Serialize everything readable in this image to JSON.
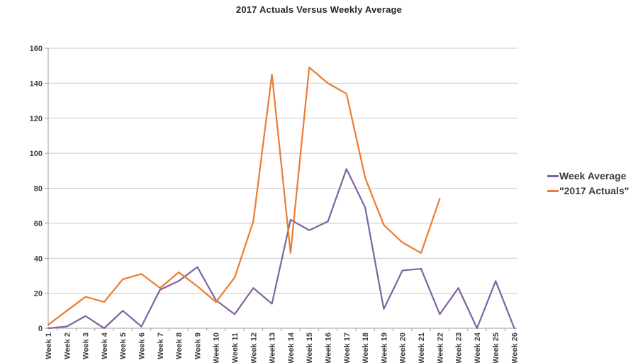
{
  "title": "2017 Actuals Versus Weekly Average",
  "legend": {
    "items": [
      {
        "label": "Week Average",
        "color": "#8064A2"
      },
      {
        "label": "\"2017 Actuals\"",
        "color": "#ED7D31"
      }
    ]
  },
  "chart_data": {
    "type": "line",
    "title": "2017 Actuals Versus Weekly Average",
    "categories": [
      "Week 1",
      "Week 2",
      "Week 3",
      "Week 4",
      "Week 5",
      "Week 6",
      "Week 7",
      "Week 8",
      "Week 9",
      "Week 10",
      "Week 11",
      "Week 12",
      "Week 13",
      "Week 14",
      "Week 15",
      "Week 16",
      "Week 17",
      "Week 18",
      "Week 19",
      "Week 20",
      "Week 21",
      "Week 22",
      "Week 23",
      "Week 24",
      "Week 25",
      "Week 26"
    ],
    "series": [
      {
        "name": "Week Average",
        "color": "#8064A2",
        "values": [
          0,
          1,
          7,
          0,
          10,
          1,
          22,
          27,
          35,
          16,
          8,
          23,
          14,
          62,
          56,
          61,
          91,
          69,
          11,
          33,
          34,
          8,
          23,
          0,
          27,
          0
        ]
      },
      {
        "name": "\"2017 Actuals\"",
        "color": "#ED7D31",
        "values": [
          2,
          10,
          18,
          15,
          28,
          31,
          23,
          32,
          24,
          15,
          29,
          61,
          145,
          43,
          149,
          140,
          134,
          86,
          59,
          49,
          43,
          74,
          null,
          null,
          null,
          null
        ]
      }
    ],
    "xlabel": "",
    "ylabel": "",
    "ylim": [
      0,
      160
    ],
    "y_ticks": [
      0,
      20,
      40,
      60,
      80,
      100,
      120,
      140,
      160
    ],
    "grid": true,
    "legend_position": "right"
  }
}
